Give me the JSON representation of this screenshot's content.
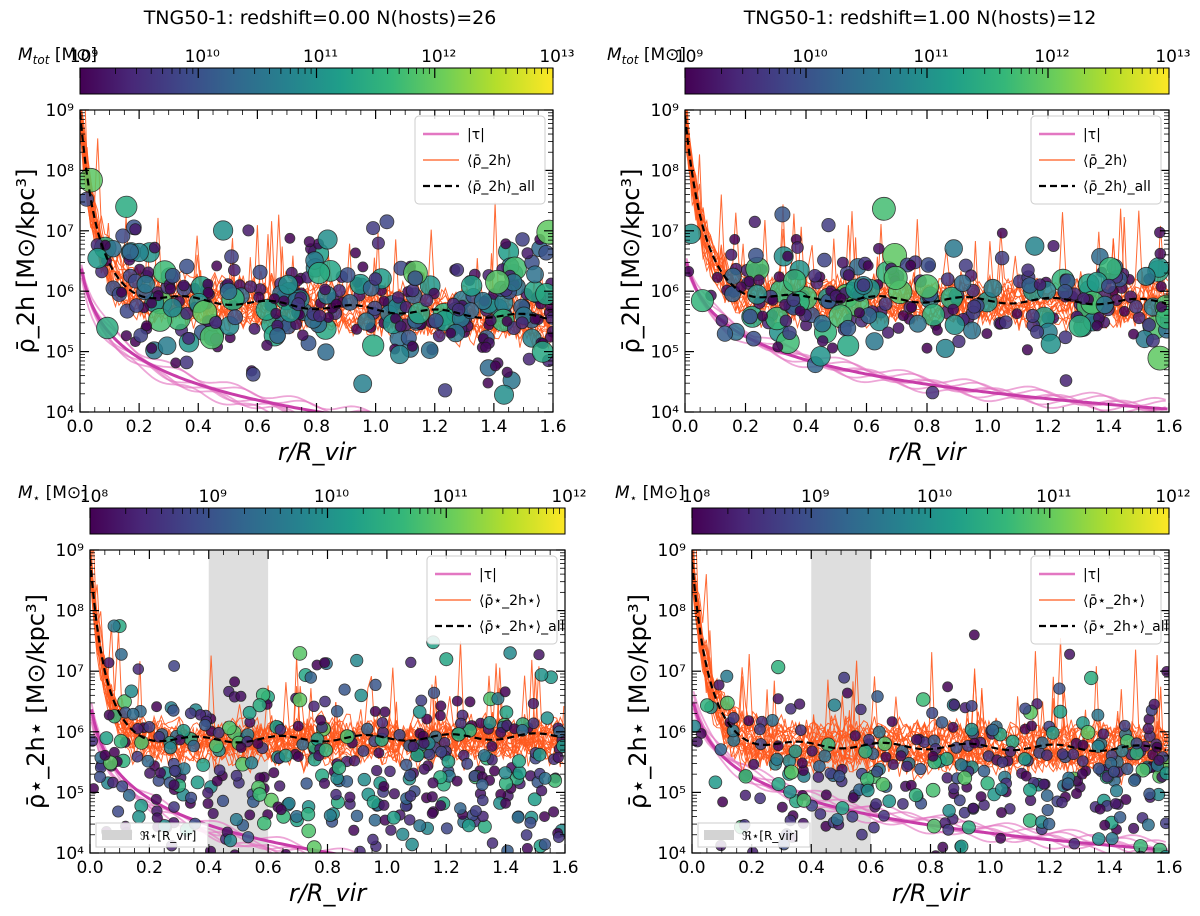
{
  "figure": {
    "title_left": "TNG50-1: redshift=0.00  N(hosts)=26",
    "title_right": "TNG50-1: redshift=1.00  N(hosts)=12",
    "colorbar_top_label": "M_tot [M⊙]",
    "colorbar_bottom_label": "M⋆ [M⊙]",
    "colormap": [
      "#440154",
      "#482878",
      "#3e4989",
      "#31688e",
      "#26828e",
      "#1f9e89",
      "#35b779",
      "#6ece58",
      "#b5de2b",
      "#fde725"
    ]
  },
  "chart_data": [
    {
      "id": "panel-top-left",
      "type": "scatter",
      "title": "TNG50-1: redshift=0.00  N(hosts)=26",
      "xlabel": "r/R_vir",
      "ylabel": "ρ̄_2h [M⊙/kpc³]",
      "xlim": [
        0.0,
        1.6
      ],
      "ylim_log10": [
        4,
        9
      ],
      "xticks": [
        "0.0",
        "0.2",
        "0.4",
        "0.6",
        "0.8",
        "1.0",
        "1.2",
        "1.4",
        "1.6"
      ],
      "yticks": [
        "10⁴",
        "10⁵",
        "10⁶",
        "10⁷",
        "10⁸",
        "10⁹"
      ],
      "colorbar": {
        "label": "M_tot [M⊙]",
        "log10_range": [
          9,
          13
        ],
        "ticks": [
          "10⁹",
          "10¹⁰",
          "10¹¹",
          "10¹²",
          "10¹³"
        ]
      },
      "legend": {
        "position": "top-right",
        "entries": [
          "|τ|",
          "⟨ρ̄_2h⟩",
          "⟨ρ̄_2h⟩_all"
        ]
      },
      "shaded_region": null,
      "tau_curve": {
        "A": 0.00075,
        "p": 0.0195,
        "alpha": 1.55
      },
      "mean_all_curve": {
        "base": 5.95,
        "amp": 3.0,
        "scale": 0.055,
        "slope": -0.25
      },
      "scatter_model": {
        "n_points": 330,
        "seed": 11,
        "center_log10": 5.8,
        "spread": 0.55,
        "size_range": [
          5,
          12
        ]
      }
    },
    {
      "id": "panel-top-right",
      "type": "scatter",
      "title": "TNG50-1: redshift=1.00  N(hosts)=12",
      "xlabel": "r/R_vir",
      "ylabel": "ρ̄_2h [M⊙/kpc³]",
      "xlim": [
        0.0,
        1.6
      ],
      "ylim_log10": [
        4,
        9
      ],
      "xticks": [
        "0.0",
        "0.2",
        "0.4",
        "0.6",
        "0.8",
        "1.0",
        "1.2",
        "1.4",
        "1.6"
      ],
      "yticks": [
        "10⁴",
        "10⁵",
        "10⁶",
        "10⁷",
        "10⁸",
        "10⁹"
      ],
      "colorbar": {
        "label": "M_tot [M⊙]",
        "log10_range": [
          9,
          13
        ],
        "ticks": [
          "10⁹",
          "10¹⁰",
          "10¹¹",
          "10¹²",
          "10¹³"
        ]
      },
      "legend": {
        "position": "top-right",
        "entries": [
          "|τ|",
          "⟨ρ̄_2h⟩",
          "⟨ρ̄_2h⟩_all"
        ]
      },
      "shaded_region": null,
      "tau_curve": {
        "A": 0.0022,
        "p": 0.025,
        "alpha": 1.4
      },
      "mean_all_curve": {
        "base": 5.9,
        "amp": 3.0,
        "scale": 0.06,
        "slope": -0.05
      },
      "scatter_model": {
        "n_points": 260,
        "seed": 23,
        "center_log10": 5.9,
        "spread": 0.45,
        "size_range": [
          5,
          12
        ]
      }
    },
    {
      "id": "panel-bottom-left",
      "type": "scatter",
      "title": "",
      "xlabel": "r/R_vir",
      "ylabel": "ρ̄⋆_2h⋆ [M⊙/kpc³]",
      "xlim": [
        0.0,
        1.6
      ],
      "ylim_log10": [
        4,
        9
      ],
      "xticks": [
        "0.0",
        "0.2",
        "0.4",
        "0.6",
        "0.8",
        "1.0",
        "1.2",
        "1.4",
        "1.6"
      ],
      "yticks": [
        "10⁴",
        "10⁵",
        "10⁶",
        "10⁷",
        "10⁸",
        "10⁹"
      ],
      "colorbar": {
        "label": "M⋆ [M⊙]",
        "log10_range": [
          8,
          12
        ],
        "ticks": [
          "10⁸",
          "10⁹",
          "10¹⁰",
          "10¹¹",
          "10¹²"
        ]
      },
      "legend": {
        "position": "top-right",
        "entries": [
          "|τ|",
          "⟨ρ̄⋆_2h⋆⟩",
          "⟨ρ̄⋆_2h⋆⟩_all"
        ]
      },
      "shaded_region": {
        "x": [
          0.4,
          0.6
        ],
        "label": "ℜ⋆[R_vir]"
      },
      "tau_curve": {
        "A": 0.00075,
        "p": 0.0195,
        "alpha": 1.55
      },
      "mean_all_curve": {
        "base": 5.85,
        "amp": 3.0,
        "scale": 0.05,
        "slope": 0.05
      },
      "scatter_model": {
        "n_points": 420,
        "seed": 37,
        "center_log10": 5.3,
        "spread": 0.75,
        "size_range": [
          5,
          7
        ]
      }
    },
    {
      "id": "panel-bottom-right",
      "type": "scatter",
      "title": "",
      "xlabel": "r/R_vir",
      "ylabel": "ρ̄⋆_2h⋆ [M⊙/kpc³]",
      "xlim": [
        0.0,
        1.6
      ],
      "ylim_log10": [
        4,
        9
      ],
      "xticks": [
        "0.0",
        "0.2",
        "0.4",
        "0.6",
        "0.8",
        "1.0",
        "1.2",
        "1.4",
        "1.6"
      ],
      "yticks": [
        "10⁴",
        "10⁵",
        "10⁶",
        "10⁷",
        "10⁸",
        "10⁹"
      ],
      "colorbar": {
        "label": "M⋆ [M⊙]",
        "log10_range": [
          8,
          12
        ],
        "ticks": [
          "10⁸",
          "10⁹",
          "10¹⁰",
          "10¹¹",
          "10¹²"
        ]
      },
      "legend": {
        "position": "top-right",
        "entries": [
          "|τ|",
          "⟨ρ̄⋆_2h⋆⟩",
          "⟨ρ̄⋆_2h⋆⟩_all"
        ]
      },
      "shaded_region": {
        "x": [
          0.4,
          0.6
        ],
        "label": "ℜ⋆[R_vir]"
      },
      "tau_curve": {
        "A": 0.0022,
        "p": 0.025,
        "alpha": 1.4
      },
      "mean_all_curve": {
        "base": 5.8,
        "amp": 3.0,
        "scale": 0.055,
        "slope": -0.05
      },
      "scatter_model": {
        "n_points": 330,
        "seed": 51,
        "center_log10": 5.3,
        "spread": 0.7,
        "size_range": [
          5,
          7
        ]
      }
    }
  ]
}
